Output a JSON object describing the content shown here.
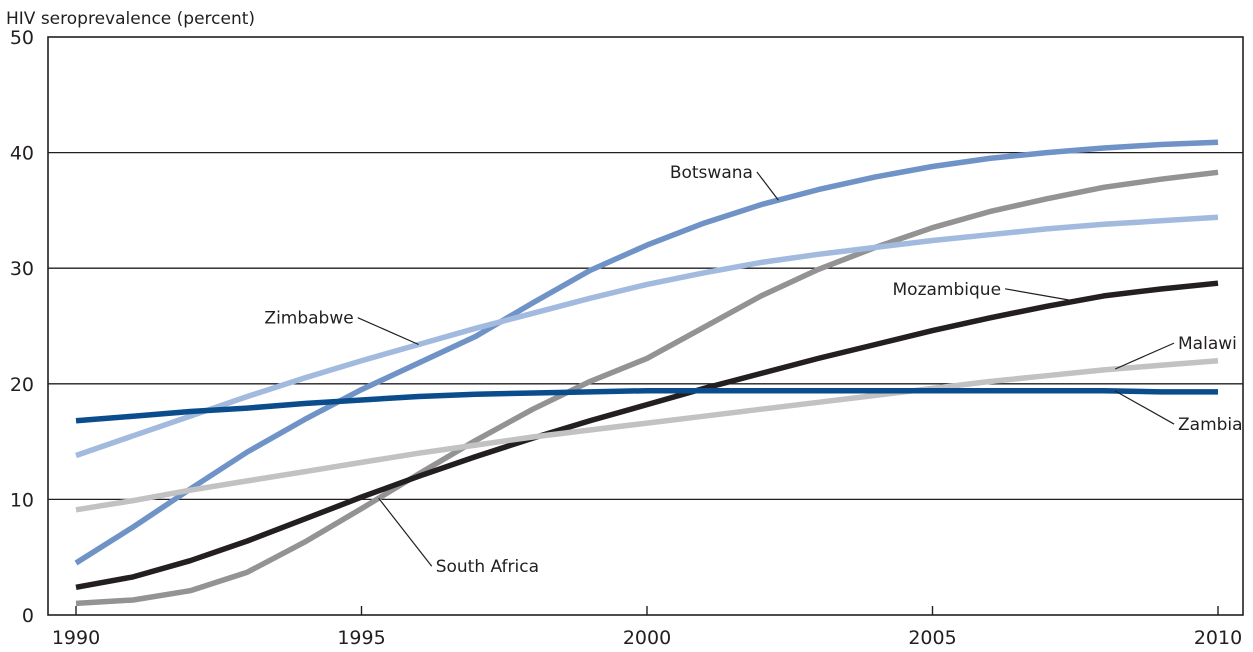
{
  "chart_data": {
    "type": "line",
    "title": "",
    "ylabel": "HIV seroprevalence (percent)",
    "xlabel": "",
    "xlim": [
      1990,
      2010
    ],
    "ylim": [
      0,
      50
    ],
    "xticks": [
      1990,
      1995,
      2000,
      2005,
      2010
    ],
    "yticks": [
      0,
      10,
      20,
      30,
      40,
      50
    ],
    "grid": "horizontal",
    "legend": "inline labels",
    "x": [
      1990,
      1991,
      1992,
      1993,
      1994,
      1995,
      1996,
      1997,
      1998,
      1999,
      2000,
      2001,
      2002,
      2003,
      2004,
      2005,
      2006,
      2007,
      2008,
      2009,
      2010
    ],
    "series": [
      {
        "name": "Botswana",
        "color": "#6f93c6",
        "values": [
          4.5,
          7.6,
          10.9,
          14.1,
          16.9,
          19.5,
          21.8,
          24.1,
          27.0,
          29.8,
          32.0,
          33.9,
          35.5,
          36.8,
          37.9,
          38.8,
          39.5,
          40.0,
          40.4,
          40.7,
          40.9
        ]
      },
      {
        "name": "South Africa",
        "color": "#939393",
        "values": [
          1.0,
          1.3,
          2.1,
          3.7,
          6.3,
          9.2,
          12.2,
          15.1,
          17.8,
          20.2,
          22.2,
          24.9,
          27.6,
          29.9,
          31.8,
          33.5,
          34.9,
          36.0,
          37.0,
          37.7,
          38.3
        ]
      },
      {
        "name": "Zimbabwe",
        "color": "#a3badf",
        "values": [
          13.8,
          15.5,
          17.2,
          18.9,
          20.5,
          22.0,
          23.4,
          24.8,
          26.1,
          27.4,
          28.6,
          29.6,
          30.5,
          31.2,
          31.8,
          32.4,
          32.9,
          33.4,
          33.8,
          34.1,
          34.4
        ]
      },
      {
        "name": "Mozambique",
        "color": "#231f20",
        "values": [
          2.4,
          3.3,
          4.7,
          6.4,
          8.3,
          10.2,
          12.0,
          13.7,
          15.3,
          16.8,
          18.2,
          19.6,
          20.9,
          22.2,
          23.4,
          24.6,
          25.7,
          26.7,
          27.6,
          28.2,
          28.7
        ]
      },
      {
        "name": "Malawi",
        "color": "#c2c2c4",
        "values": [
          9.1,
          9.9,
          10.8,
          11.6,
          12.4,
          13.2,
          14.0,
          14.7,
          15.4,
          16.0,
          16.6,
          17.2,
          17.8,
          18.4,
          19.0,
          19.6,
          20.2,
          20.7,
          21.2,
          21.6,
          22.0
        ]
      },
      {
        "name": "Zambia",
        "color": "#0b4d8c",
        "values": [
          16.8,
          17.2,
          17.6,
          17.9,
          18.3,
          18.6,
          18.9,
          19.1,
          19.2,
          19.3,
          19.4,
          19.4,
          19.4,
          19.4,
          19.4,
          19.4,
          19.4,
          19.4,
          19.4,
          19.3,
          19.3
        ]
      }
    ],
    "annotations": [
      {
        "text": "Botswana",
        "series": "Botswana",
        "at_x": 2002.3,
        "text_x": 2000.4,
        "text_y": 37.8
      },
      {
        "text": "South Africa",
        "series": "South Africa",
        "at_x": 1995.3,
        "text_x": 1996.3,
        "text_y": 3.7
      },
      {
        "text": "Zimbabwe",
        "series": "Zimbabwe",
        "at_x": 1996.0,
        "text_x": 1993.3,
        "text_y": 25.2
      },
      {
        "text": "Mozambique",
        "series": "Mozambique",
        "at_x": 2007.5,
        "text_x": 2004.3,
        "text_y": 27.7
      },
      {
        "text": "Malawi",
        "series": "Malawi",
        "at_x": 2008.2,
        "text_x": 2009.3,
        "text_y": 23.0
      },
      {
        "text": "Zambia",
        "series": "Zambia",
        "at_x": 2008.2,
        "text_x": 2009.3,
        "text_y": 16.0
      }
    ]
  }
}
